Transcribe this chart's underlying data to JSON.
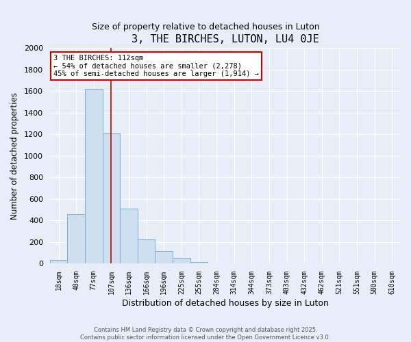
{
  "title": "3, THE BIRCHES, LUTON, LU4 0JE",
  "subtitle": "Size of property relative to detached houses in Luton",
  "xlabel": "Distribution of detached houses by size in Luton",
  "ylabel": "Number of detached properties",
  "bar_color": "#cfdff0",
  "bar_edge_color": "#7aafd4",
  "background_color": "#e8eef8",
  "grid_color": "#ffffff",
  "categories": [
    "18sqm",
    "48sqm",
    "77sqm",
    "107sqm",
    "136sqm",
    "166sqm",
    "196sqm",
    "225sqm",
    "255sqm",
    "284sqm",
    "314sqm",
    "344sqm",
    "373sqm",
    "403sqm",
    "432sqm",
    "462sqm",
    "521sqm",
    "551sqm",
    "580sqm",
    "610sqm"
  ],
  "values": [
    30,
    460,
    1620,
    1210,
    510,
    220,
    115,
    50,
    15,
    0,
    0,
    0,
    0,
    0,
    0,
    0,
    0,
    0,
    0,
    0
  ],
  "ylim": [
    0,
    2000
  ],
  "yticks": [
    0,
    200,
    400,
    600,
    800,
    1000,
    1200,
    1400,
    1600,
    1800,
    2000
  ],
  "vline_x_index": 3,
  "vline_color": "#c00000",
  "annotation_title": "3 THE BIRCHES: 112sqm",
  "annotation_line1": "← 54% of detached houses are smaller (2,278)",
  "annotation_line2": "45% of semi-detached houses are larger (1,914) →",
  "annotation_box_edge": "#cc0000",
  "footnote1": "Contains HM Land Registry data © Crown copyright and database right 2025.",
  "footnote2": "Contains public sector information licensed under the Open Government Licence v3.0."
}
